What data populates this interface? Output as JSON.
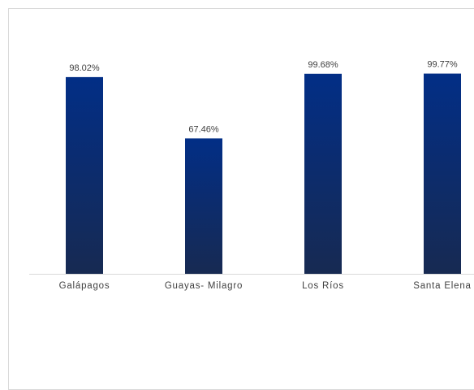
{
  "chart_data": {
    "type": "bar",
    "title": "",
    "xlabel": "",
    "ylabel": "",
    "categories": [
      "Galápagos",
      "Guayas- Milagro",
      "Los Ríos",
      "Santa Elena"
    ],
    "values": [
      98.02,
      67.46,
      99.68,
      99.77
    ],
    "value_labels": [
      "98.02%",
      "67.46%",
      "99.68%",
      "99.77%"
    ],
    "ylim": [
      0,
      100
    ],
    "grid": false,
    "legend": "none",
    "colors": {
      "bar_top": "#022e86",
      "bar_bottom": "#172a52",
      "axis": "#d9d9d9",
      "text": "#404040"
    }
  }
}
